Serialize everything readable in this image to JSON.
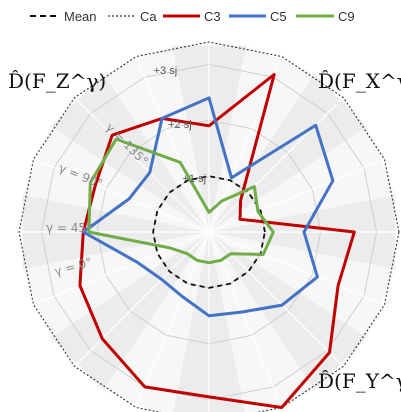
{
  "chart_data": {
    "type": "radar",
    "axes_count": 16,
    "rings": [
      {
        "label": "+1 sj",
        "level": 1
      },
      {
        "label": "+2 sj",
        "level": 2
      },
      {
        "label": "+3 sj",
        "level": 3
      }
    ],
    "angle_labels": [
      "γ = 0°",
      "γ = 45°",
      "γ = 90°",
      "γ = 135°"
    ],
    "corner_labels": [
      "D̂(F_Z^γ)",
      "D̂(F_X^γ)",
      "D̂(F_Y^γ)"
    ],
    "max_level": 3.4,
    "grid": true,
    "legend_position": "top",
    "series": [
      {
        "name": "Mean",
        "style": "dashed",
        "color": "#111111",
        "values": [
          1,
          1,
          1,
          1,
          1,
          1,
          1,
          1,
          1,
          1,
          1,
          1,
          1,
          1,
          1,
          1
        ]
      },
      {
        "name": "Ca",
        "style": "dotted",
        "color": "#333333",
        "values": [
          3.4,
          3.4,
          3.4,
          3.4,
          3.4,
          3.4,
          3.4,
          3.4,
          3.4,
          3.4,
          3.4,
          3.4,
          3.4,
          3.4,
          3.4,
          3.4
        ]
      },
      {
        "name": "C3",
        "style": "solid",
        "color": "#c00000",
        "values": [
          2.6,
          0.6,
          0.8,
          3.05,
          1.9,
          2.2,
          2.45,
          2.2,
          2.25,
          2.5,
          2.7,
          3.0,
          2.95,
          3.4,
          3.05,
          2.5
        ]
      },
      {
        "name": "C5",
        "style": "solid",
        "color": "#4472c4",
        "values": [
          1.7,
          2.4,
          2.7,
          1.05,
          2.4,
          2.2,
          1.5,
          1.55,
          2.25,
          1.4,
          1.2,
          1.25,
          1.5,
          1.55,
          1.85,
          2.1
        ]
      },
      {
        "name": "C9",
        "style": "solid",
        "color": "#70ad47",
        "values": [
          1.15,
          0.95,
          1.15,
          0.6,
          0.35,
          1.35,
          2.35,
          2.3,
          2.15,
          0.75,
          0.55,
          0.55,
          0.55,
          0.55,
          0.55,
          1.05
        ]
      }
    ]
  }
}
